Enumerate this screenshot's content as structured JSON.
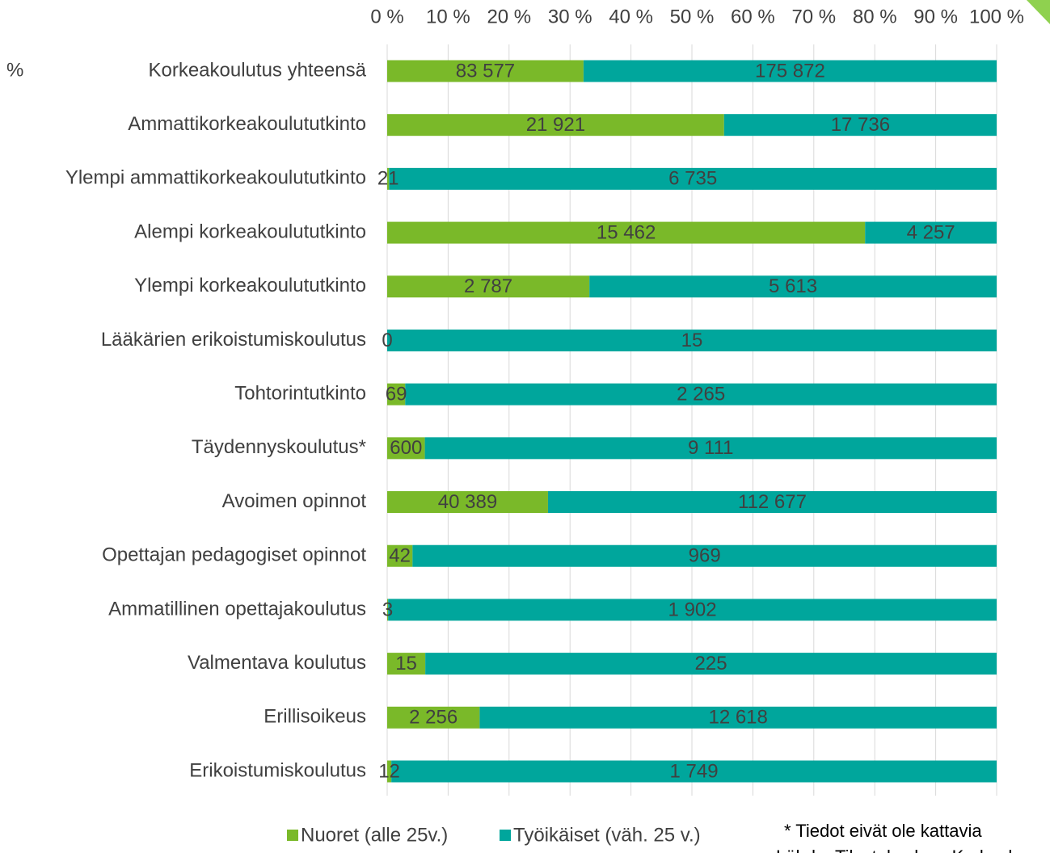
{
  "chart_data": {
    "type": "stacked_bar_100_horizontal",
    "y_axis_label": "%",
    "categories": [
      "Korkeakoulutus yhteensä",
      "Ammattikorkeakoulututkinto",
      "Ylempi ammattikorkeakoulututkinto",
      "Alempi korkeakoulututkinto",
      "Ylempi korkeakoulututkinto",
      "Lääkärien erikoistumiskoulutus",
      "Tohtorintutkinto",
      "Täydennyskoulutus*",
      "Avoimen opinnot",
      "Opettajan pedagogiset opinnot",
      "Ammatillinen opettajakoulutus",
      "Valmentava koulutus",
      "Erillisoikeus",
      "Erikoistumiskoulutus"
    ],
    "series": [
      {
        "name": "Nuoret (alle 25v.)",
        "color": "#7ab929",
        "values": [
          83577,
          21921,
          21,
          15462,
          2787,
          0,
          69,
          600,
          40389,
          42,
          3,
          15,
          2256,
          12
        ],
        "value_labels": [
          "83 577",
          "21 921",
          "21",
          "15 462",
          "2 787",
          "0",
          "69",
          "600",
          "40 389",
          "42",
          "3",
          "15",
          "2 256",
          "12"
        ]
      },
      {
        "name": "Työikäiset (väh. 25 v.)",
        "color": "#00a69c",
        "values": [
          175872,
          17736,
          6735,
          4257,
          5613,
          15,
          2265,
          9111,
          112677,
          969,
          1902,
          225,
          12618,
          1749
        ],
        "value_labels": [
          "175 872",
          "17 736",
          "6 735",
          "4 257",
          "5 613",
          "15",
          "2 265",
          "9 111",
          "112 677",
          "969",
          "1 902",
          "225",
          "12 618",
          "1 749"
        ]
      }
    ],
    "xlim": [
      0,
      100
    ],
    "xticks": [
      {
        "value": 0,
        "label": "0 %"
      },
      {
        "value": 10,
        "label": "10 %"
      },
      {
        "value": 20,
        "label": "20 %"
      },
      {
        "value": 30,
        "label": "30 %"
      },
      {
        "value": 40,
        "label": "40 %"
      },
      {
        "value": 50,
        "label": "50 %"
      },
      {
        "value": 60,
        "label": "60 %"
      },
      {
        "value": 70,
        "label": "70 %"
      },
      {
        "value": 80,
        "label": "80 %"
      },
      {
        "value": 90,
        "label": "90 %"
      },
      {
        "value": 100,
        "label": "100 %"
      }
    ],
    "grid": true,
    "legend": "bottom",
    "footnote": "* Tiedot eivät ole kattavia",
    "source": "Lähde: Tilastokeskus, Korkeak"
  }
}
